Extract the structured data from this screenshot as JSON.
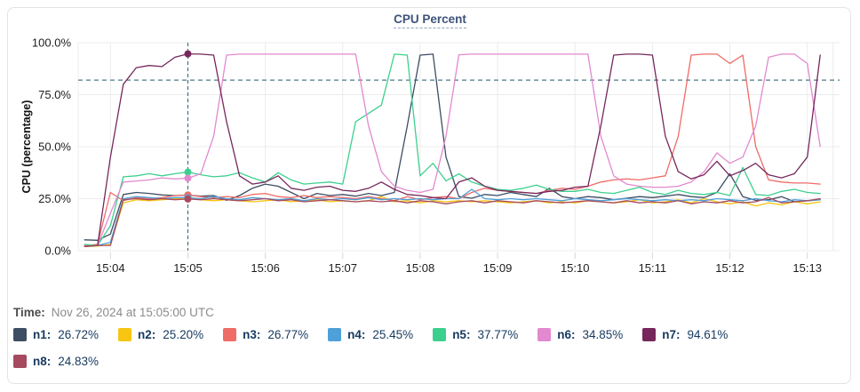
{
  "header": {
    "title": "CPU Percent"
  },
  "time_row": {
    "label": "Time:",
    "value": "Nov 26, 2024 at 15:05:00 UTC"
  },
  "legend": {
    "items": [
      {
        "label": "n1:",
        "value": "26.72%",
        "color": "#3d4d63"
      },
      {
        "label": "n2:",
        "value": "25.20%",
        "color": "#f7c512"
      },
      {
        "label": "n3:",
        "value": "26.77%",
        "color": "#ef6c67"
      },
      {
        "label": "n4:",
        "value": "25.45%",
        "color": "#4da0d8"
      },
      {
        "label": "n5:",
        "value": "37.77%",
        "color": "#3cd08e"
      },
      {
        "label": "n6:",
        "value": "34.85%",
        "color": "#e289cf"
      },
      {
        "label": "n7:",
        "value": "94.61%",
        "color": "#76275c"
      },
      {
        "label": "n8:",
        "value": "24.83%",
        "color": "#a64a5f"
      }
    ]
  },
  "chart_data": {
    "type": "line",
    "title": "CPU Percent",
    "xlabel": "",
    "ylabel": "CPU (percentage)",
    "ylim": [
      0,
      100
    ],
    "yticks": [
      0,
      25,
      50,
      75,
      100
    ],
    "ytick_labels": [
      "0.0%",
      "25.0%",
      "50.0%",
      "75.0%",
      "100.0%"
    ],
    "xtick_labels": [
      "15:04",
      "15:05",
      "15:06",
      "15:07",
      "15:08",
      "15:09",
      "15:10",
      "15:11",
      "15:12",
      "15:13"
    ],
    "x_range": [
      "15:03:35",
      "15:13:25"
    ],
    "x_end_gridline": "15:13:20",
    "x_start": "15:03:40",
    "x_step_seconds": 10,
    "grid": true,
    "legend_position": "bottom",
    "threshold_value": 82,
    "crosshair_time": "15:05:00",
    "series": [
      {
        "name": "n1",
        "color": "#3d4d63",
        "value_at_crosshair": 26.72,
        "values": [
          5.2,
          5,
          8,
          27,
          28,
          27.5,
          26.8,
          26.5,
          26.72,
          26.2,
          26.5,
          24.2,
          26.5,
          30,
          32,
          31,
          28,
          25,
          27.5,
          26.5,
          27,
          26.2,
          27.5,
          26.5,
          28,
          60,
          94,
          94.5,
          45,
          26,
          25.2,
          27,
          26.5,
          28,
          27,
          26,
          30,
          26,
          25,
          26,
          25.5,
          24.5,
          25.2,
          26,
          25.5,
          26.2,
          27,
          26,
          25.5,
          28,
          37,
          26,
          24.2,
          24.5,
          26,
          23.5,
          24,
          24.5
        ]
      },
      {
        "name": "n2",
        "color": "#f7c512",
        "value_at_crosshair": 25.2,
        "values": [
          2,
          2.2,
          3,
          23,
          24.5,
          24,
          24.5,
          25,
          25.2,
          24.5,
          24,
          24.5,
          24,
          23.5,
          24,
          24.5,
          23.5,
          24,
          24.5,
          23.5,
          24,
          23.5,
          24,
          26,
          23.5,
          24,
          23,
          24,
          23.5,
          24,
          23.5,
          24,
          23.5,
          23,
          23.5,
          24,
          23,
          23.5,
          23,
          24,
          23.5,
          23,
          23.5,
          24.5,
          23,
          23.5,
          24.5,
          23,
          25,
          23.5,
          22.5,
          23.5,
          21.5,
          23,
          22,
          23.5,
          22.5,
          23.5
        ]
      },
      {
        "name": "n3",
        "color": "#ef6c67",
        "value_at_crosshair": 26.77,
        "values": [
          2.5,
          3,
          28,
          24,
          25.5,
          25,
          25.5,
          26.5,
          26.77,
          26,
          25.5,
          26,
          25.5,
          27,
          27.5,
          26,
          25.5,
          26.5,
          25.5,
          26,
          25.5,
          25,
          26,
          25,
          24,
          26,
          24.5,
          25.5,
          26,
          25,
          28,
          30,
          29,
          28.5,
          28,
          27.5,
          29,
          30,
          29.5,
          31,
          33,
          34,
          34.5,
          34,
          35,
          36,
          55,
          94,
          94.5,
          94.5,
          90,
          94,
          50,
          34,
          33,
          32.5,
          32.5,
          32
        ]
      },
      {
        "name": "n4",
        "color": "#4da0d8",
        "value_at_crosshair": 25.45,
        "values": [
          2,
          2.5,
          4,
          25,
          26,
          25.5,
          25,
          25.5,
          25.45,
          25,
          26,
          25,
          24.5,
          25.5,
          25,
          24.5,
          25,
          24,
          25,
          24.5,
          25,
          24.5,
          25.5,
          24.5,
          25,
          24.5,
          25,
          24.5,
          25,
          25,
          29.5,
          25,
          24.5,
          25,
          24.5,
          25,
          24.5,
          24,
          25,
          24.5,
          24,
          24.5,
          25,
          24.5,
          24,
          24.5,
          24,
          24.5,
          24,
          25,
          24.5,
          24,
          25,
          24,
          23.5,
          24.5,
          24,
          24.5
        ]
      },
      {
        "name": "n5",
        "color": "#3cd08e",
        "value_at_crosshair": 37.77,
        "values": [
          3,
          2.5,
          12,
          35.5,
          36,
          37,
          36,
          37,
          37.77,
          36.5,
          35.5,
          36,
          37.5,
          35,
          33,
          37.5,
          34,
          32,
          32.5,
          33,
          32,
          62,
          66,
          70,
          94.5,
          94,
          36,
          42,
          33.5,
          37,
          33,
          31,
          29.5,
          29,
          30,
          31.5,
          29.5,
          28.5,
          28.5,
          29.5,
          28,
          27.5,
          29,
          30.5,
          28,
          27,
          29,
          27.5,
          27,
          28,
          26.5,
          40,
          27,
          26.5,
          28.5,
          29.5,
          28,
          27.5
        ]
      },
      {
        "name": "n6",
        "color": "#e289cf",
        "value_at_crosshair": 34.85,
        "values": [
          2,
          2.5,
          18,
          33,
          33.5,
          34,
          35,
          34.5,
          34.85,
          37,
          55,
          94,
          94.5,
          94.5,
          94.5,
          94.5,
          94.5,
          94.5,
          94.5,
          94.5,
          94.5,
          94.5,
          60,
          38,
          31,
          29,
          28,
          29.5,
          55,
          94.2,
          94.5,
          94.5,
          94.5,
          94.5,
          94.5,
          94.5,
          94.5,
          94.5,
          94.5,
          94.5,
          55,
          36,
          32,
          31,
          30.5,
          30.5,
          31,
          33,
          38,
          47,
          42,
          45,
          60,
          93,
          94.5,
          94.5,
          90,
          50
        ]
      },
      {
        "name": "n7",
        "color": "#76275c",
        "value_at_crosshair": 94.61,
        "values": [
          2,
          2.5,
          45,
          80,
          88,
          89,
          88.5,
          93,
          94.61,
          94.5,
          94,
          62,
          36,
          32,
          33,
          36,
          30,
          29,
          30.5,
          31,
          29,
          28.5,
          30,
          33,
          29.5,
          27,
          26.5,
          25.5,
          25,
          33,
          35,
          31,
          29,
          28.5,
          28,
          27.5,
          28.5,
          29,
          30.5,
          31,
          60,
          94,
          94.5,
          94.5,
          94,
          55,
          38,
          34.5,
          36.5,
          43,
          36,
          38.5,
          42,
          36.5,
          35,
          37,
          45,
          94
        ]
      },
      {
        "name": "n8",
        "color": "#a64a5f",
        "value_at_crosshair": 24.83,
        "values": [
          2,
          2.5,
          2.5,
          24.5,
          25,
          24.5,
          25,
          24.5,
          24.83,
          24.5,
          25,
          24.5,
          24,
          24.5,
          25,
          24,
          24.5,
          23.5,
          24,
          24.5,
          24,
          23.5,
          24,
          23.5,
          24,
          23,
          24,
          23.5,
          22.5,
          23.5,
          24,
          23,
          24,
          23.5,
          23,
          24,
          23.5,
          23,
          23.5,
          24,
          23.5,
          23,
          24,
          23,
          23.5,
          23,
          24,
          22.5,
          23.5,
          23,
          24,
          23,
          23.5,
          25.5,
          23,
          23.5,
          24,
          25
        ]
      }
    ]
  }
}
